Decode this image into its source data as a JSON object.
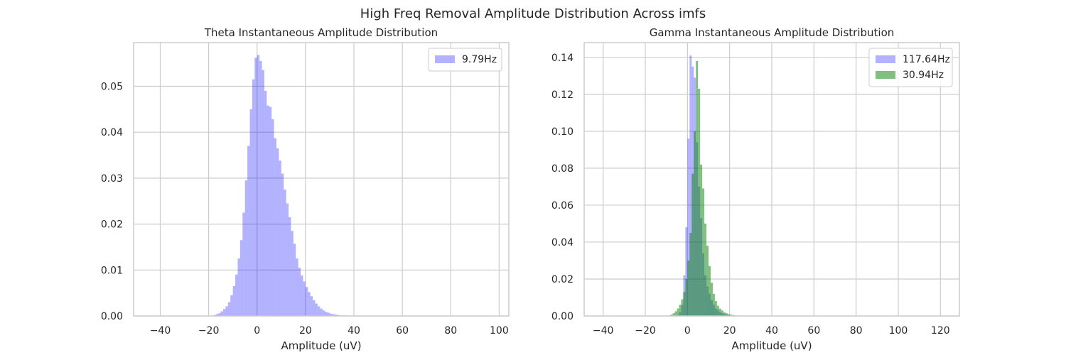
{
  "figure": {
    "suptitle": "High Freq Removal Amplitude Distribution Across imfs"
  },
  "chart_data": [
    {
      "type": "bar",
      "title": "Theta Instantaneous Amplitude Distribution",
      "xlabel": "Amplitude (uV)",
      "ylabel": "",
      "xlim": [
        -51,
        104
      ],
      "ylim": [
        0,
        0.0595
      ],
      "xticks": [
        -40,
        -20,
        0,
        20,
        40,
        60,
        80,
        100
      ],
      "xtick_labels": [
        "−40",
        "−20",
        "0",
        "20",
        "40",
        "60",
        "80",
        "100"
      ],
      "yticks": [
        0,
        0.01,
        0.02,
        0.03,
        0.04,
        0.05
      ],
      "ytick_labels": [
        "0.00",
        "0.01",
        "0.02",
        "0.03",
        "0.04",
        "0.05"
      ],
      "grid": true,
      "legend": "top-right",
      "series": [
        {
          "name": "9.79Hz",
          "color": "#0000ff",
          "alpha": 0.3,
          "bin_start": -18,
          "bin_width": 1,
          "values": [
            0.0002,
            0.0004,
            0.0006,
            0.001,
            0.0015,
            0.0021,
            0.003,
            0.0045,
            0.0065,
            0.009,
            0.0125,
            0.0165,
            0.0225,
            0.0295,
            0.037,
            0.045,
            0.0515,
            0.0562,
            0.0568,
            0.0555,
            0.0535,
            0.049,
            0.0458,
            0.0455,
            0.0428,
            0.0387,
            0.0365,
            0.0338,
            0.031,
            0.0275,
            0.0245,
            0.0215,
            0.0185,
            0.0157,
            0.0125,
            0.0105,
            0.0088,
            0.0075,
            0.0063,
            0.0052,
            0.0043,
            0.0034,
            0.0027,
            0.0021,
            0.0016,
            0.0012,
            0.0009,
            0.0007,
            0.0005,
            0.0004,
            0.0003,
            0.0002,
            0.0001,
            0.0001,
            0.0001
          ]
        }
      ]
    },
    {
      "type": "bar",
      "title": "Gamma Instantaneous Amplitude Distribution",
      "xlabel": "Amplitude (uV)",
      "ylabel": "",
      "xlim": [
        -49,
        129
      ],
      "ylim": [
        0,
        0.148
      ],
      "xticks": [
        -40,
        -20,
        0,
        20,
        40,
        60,
        80,
        100,
        120
      ],
      "xtick_labels": [
        "−40",
        "−20",
        "0",
        "20",
        "40",
        "60",
        "80",
        "100",
        "120"
      ],
      "yticks": [
        0,
        0.02,
        0.04,
        0.06,
        0.08,
        0.1,
        0.12,
        0.14
      ],
      "ytick_labels": [
        "0.00",
        "0.02",
        "0.04",
        "0.06",
        "0.08",
        "0.10",
        "0.12",
        "0.14"
      ],
      "grid": true,
      "legend": "top-right",
      "series": [
        {
          "name": "117.64Hz",
          "color": "#0000ff",
          "alpha": 0.3,
          "bin_start": -5,
          "bin_width": 1,
          "values": [
            0.0005,
            0.002,
            0.006,
            0.022,
            0.048,
            0.096,
            0.141,
            0.135,
            0.129,
            0.094,
            0.07,
            0.053,
            0.034,
            0.022,
            0.016,
            0.012,
            0.0085,
            0.006,
            0.004,
            0.003,
            0.002,
            0.0015,
            0.001,
            0.0007,
            0.0005
          ]
        },
        {
          "name": "30.94Hz",
          "color": "#008000",
          "alpha": 0.5,
          "bin_start": -9,
          "bin_width": 1,
          "values": [
            0.0003,
            0.0007,
            0.0015,
            0.0025,
            0.004,
            0.006,
            0.009,
            0.013,
            0.02,
            0.03,
            0.045,
            0.077,
            0.1,
            0.138,
            0.123,
            0.082,
            0.069,
            0.05,
            0.038,
            0.027,
            0.018,
            0.012,
            0.008,
            0.0055,
            0.004,
            0.003,
            0.002,
            0.0015,
            0.001,
            0.0007,
            0.0005,
            0.0003,
            0.0002,
            0.0001
          ]
        }
      ]
    }
  ]
}
